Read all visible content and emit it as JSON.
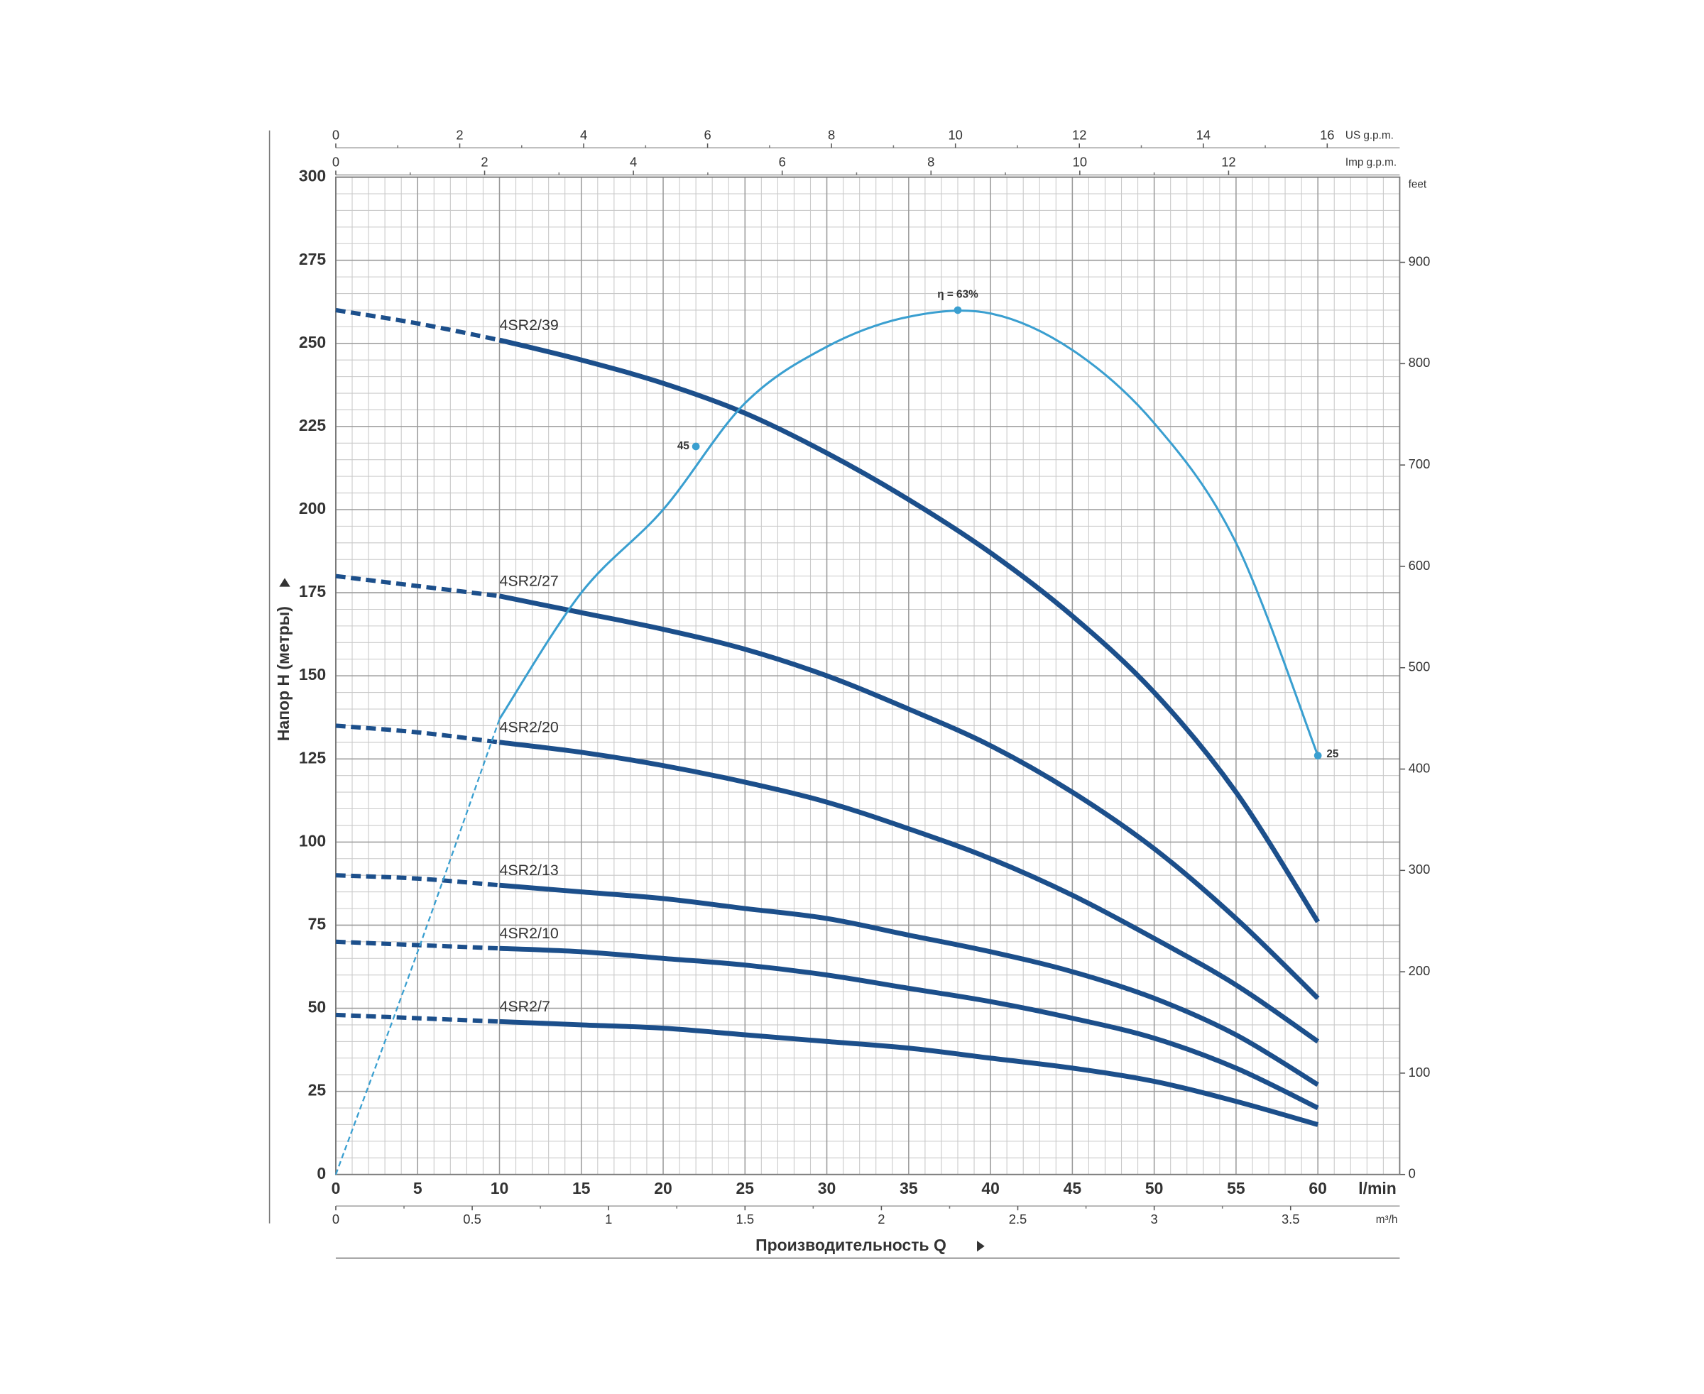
{
  "chart_data": {
    "type": "line",
    "x_label": "Производительность Q",
    "y_label": "Напор H (метры)",
    "x_unit": "l/min",
    "x": [
      0,
      5,
      10,
      15,
      20,
      25,
      30,
      35,
      40,
      45,
      50,
      55,
      60
    ],
    "xlim": [
      0,
      65
    ],
    "xticks": [
      0,
      5,
      10,
      15,
      20,
      25,
      30,
      35,
      40,
      45,
      50,
      55,
      60
    ],
    "ylim": [
      0,
      300
    ],
    "yticks": [
      0,
      25,
      50,
      75,
      100,
      125,
      150,
      175,
      200,
      225,
      250,
      275,
      300
    ],
    "y2_unit": "feet",
    "y2lim": [
      0,
      984
    ],
    "y2ticks": [
      0,
      100,
      200,
      300,
      400,
      500,
      600,
      700,
      800,
      900
    ],
    "secondary_x_axes": [
      {
        "unit": "US g.p.m.",
        "position": "top",
        "xlim": [
          0,
          17.17
        ],
        "xticks": [
          0,
          2,
          4,
          6,
          8,
          10,
          12,
          14,
          16
        ]
      },
      {
        "unit": "Imp g.p.m.",
        "position": "top",
        "xlim": [
          0,
          14.3
        ],
        "xticks": [
          0,
          2,
          4,
          6,
          8,
          10,
          12
        ]
      },
      {
        "unit": "m³/h",
        "position": "bottom",
        "xlim": [
          0,
          3.9
        ],
        "xticks": [
          0,
          0.5,
          1,
          1.5,
          2,
          2.5,
          3,
          3.5
        ]
      }
    ],
    "grid": true,
    "dashed_x_max": 10,
    "series": [
      {
        "name": "4SR2/39",
        "color": "#1c4f8b",
        "values": [
          260,
          256,
          251,
          245,
          238,
          229,
          217,
          203,
          187,
          168,
          145,
          115,
          76
        ]
      },
      {
        "name": "4SR2/27",
        "color": "#1c4f8b",
        "values": [
          180,
          177,
          174,
          169,
          164,
          158,
          150,
          140,
          129,
          115,
          98,
          77,
          53
        ]
      },
      {
        "name": "4SR2/20",
        "color": "#1c4f8b",
        "values": [
          135,
          133,
          130,
          127,
          123,
          118,
          112,
          104,
          95,
          84,
          71,
          57,
          40
        ]
      },
      {
        "name": "4SR2/13",
        "color": "#1c4f8b",
        "values": [
          90,
          89,
          87,
          85,
          83,
          80,
          77,
          72,
          67,
          61,
          53,
          42,
          27
        ]
      },
      {
        "name": "4SR2/10",
        "color": "#1c4f8b",
        "values": [
          70,
          69,
          68,
          67,
          65,
          63,
          60,
          56,
          52,
          47,
          41,
          32,
          20
        ]
      },
      {
        "name": "4SR2/7",
        "color": "#1c4f8b",
        "values": [
          48,
          47,
          46,
          45,
          44,
          42,
          40,
          38,
          35,
          32,
          28,
          22,
          15
        ]
      }
    ],
    "efficiency": {
      "color": "#3a9fd0",
      "values": [
        0,
        67,
        137,
        175,
        200,
        232,
        249,
        258,
        259,
        248,
        226,
        190,
        126
      ],
      "points": [
        {
          "x": 22,
          "y": 219,
          "value": 45
        },
        {
          "x": 38,
          "y": 260,
          "value": 63,
          "label": "η = 63%"
        },
        {
          "x": 60,
          "y": 126,
          "value": 25
        }
      ]
    }
  }
}
